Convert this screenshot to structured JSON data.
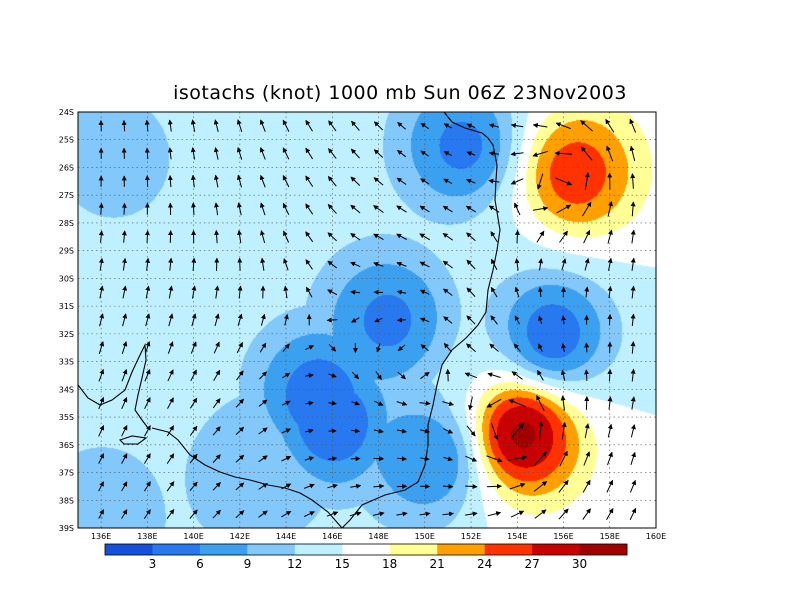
{
  "title": "isotachs (knot) 1000 mb Sun 06Z 23Nov2003",
  "lat_labels": [
    "24S",
    "25S",
    "26S",
    "27S",
    "28S",
    "29S",
    "30S",
    "31S",
    "32S",
    "33S",
    "34S",
    "35S",
    "36S",
    "37S",
    "38S",
    "39S"
  ],
  "lon_labels": [
    "136E",
    "138E",
    "140E",
    "142E",
    "144E",
    "146E",
    "148E",
    "150E",
    "152E",
    "154E",
    "156E",
    "158E",
    "160E"
  ],
  "colorbar": {
    "labels": [
      "3",
      "6",
      "9",
      "12",
      "15",
      "18",
      "21",
      "24",
      "27",
      "30"
    ],
    "colors": [
      "#1450dc",
      "#2878f0",
      "#3ca0f0",
      "#82c8fa",
      "#bef0ff",
      "#ffffff",
      "#ffff96",
      "#ffa000",
      "#ff3200",
      "#c80000",
      "#a00000"
    ]
  },
  "map_data": {
    "type": "isotach_map",
    "level": "1000 mb",
    "units": "knot",
    "lon_range": [
      135,
      160
    ],
    "lat_range": [
      -39,
      -24
    ],
    "speed_centers": [
      {
        "lon": 154.2,
        "lat": -35.6,
        "speed": 31
      },
      {
        "lon": 156.5,
        "lat": -26.2,
        "speed": 26
      },
      {
        "lon": 146.0,
        "lat": -35.2,
        "speed": 3
      },
      {
        "lon": 145.4,
        "lat": -34.2,
        "speed": 4
      },
      {
        "lon": 148.4,
        "lat": -31.5,
        "speed": 5
      },
      {
        "lon": 151.6,
        "lat": -25.2,
        "speed": 5
      },
      {
        "lon": 155.5,
        "lat": -32.0,
        "speed": 4
      },
      {
        "lon": 150.2,
        "lat": -36.5,
        "speed": 6
      },
      {
        "lon": 136.5,
        "lat": -25.6,
        "speed": 10
      },
      {
        "lon": 142.3,
        "lat": -37.3,
        "speed": 10
      },
      {
        "lon": 136.0,
        "lat": -38.6,
        "speed": 9
      }
    ]
  }
}
